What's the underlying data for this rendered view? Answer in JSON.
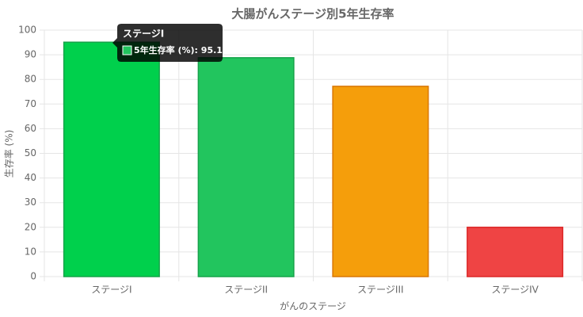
{
  "chart_data": {
    "type": "bar",
    "title": "大腸がんステージ別5年生存率",
    "x_label": "がんのステージ",
    "y_label": "生存率 (%)",
    "categories": [
      "ステージI",
      "ステージII",
      "ステージIII",
      "ステージIV"
    ],
    "series": [
      {
        "name": "5年生存率 (%)",
        "values": [
          95.1,
          88.8,
          77.2,
          20.0
        ],
        "colors": [
          "#00d04c",
          "#22c55e",
          "#f59e0b",
          "#ef4444"
        ],
        "border_colors": [
          "#16a34a",
          "#16a34a",
          "#d97706",
          "#dc2626"
        ]
      }
    ],
    "ylim": [
      0,
      100
    ],
    "yticks": [
      0,
      10,
      20,
      30,
      40,
      50,
      60,
      70,
      80,
      90,
      100
    ],
    "grid": true,
    "tooltip": {
      "title": "ステージI",
      "label": "5年生存率 (%): 95.1"
    }
  }
}
